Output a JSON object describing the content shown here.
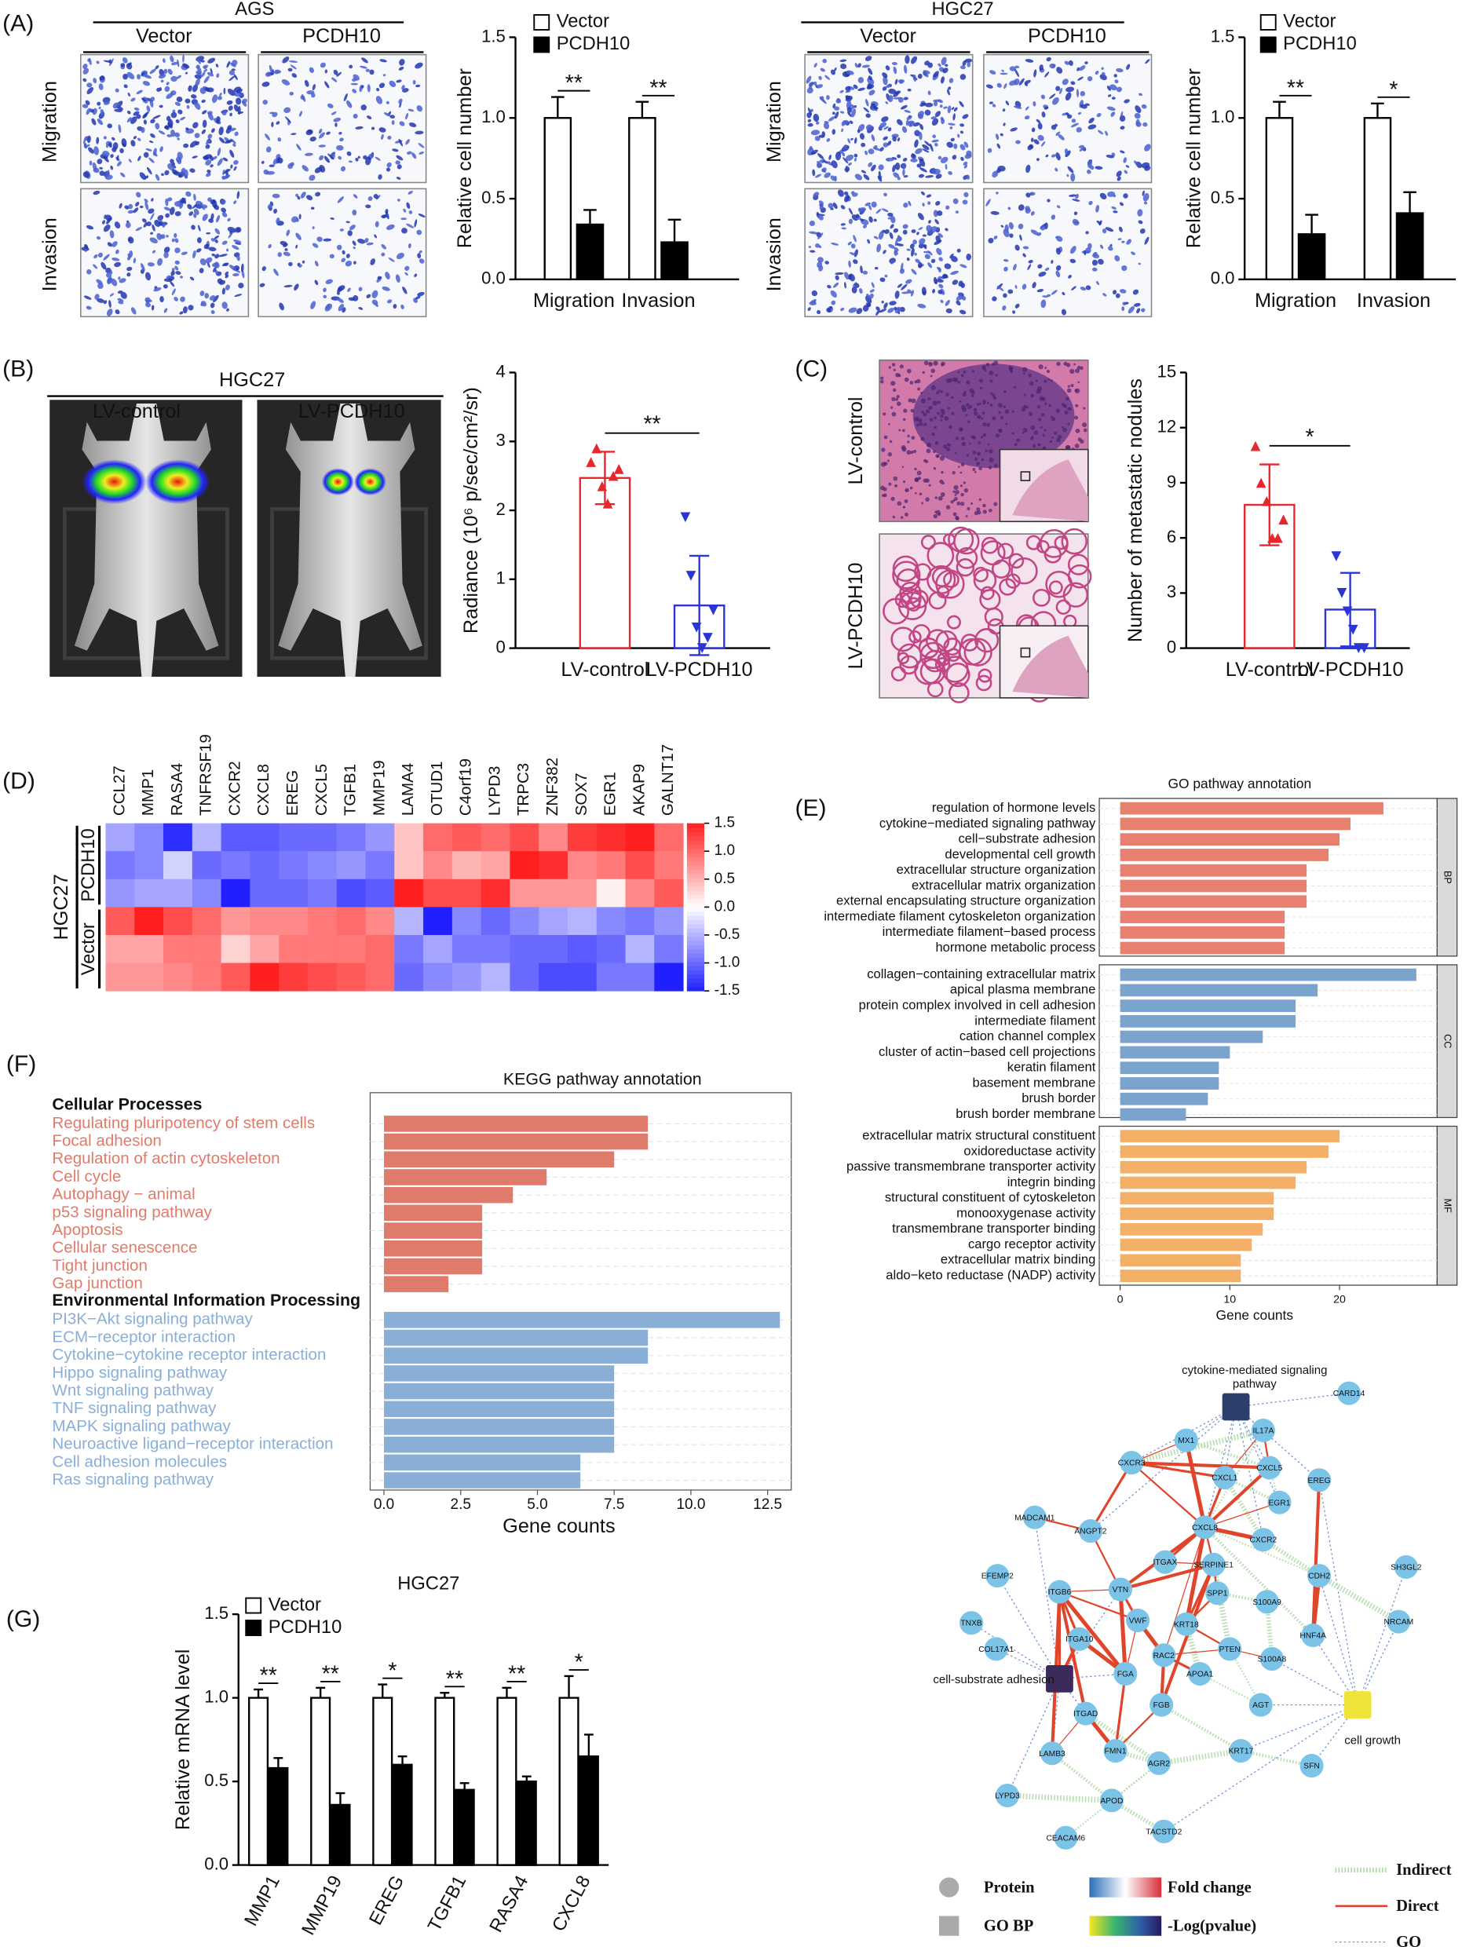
{
  "panel_labels": [
    "(A)",
    "(B)",
    "(C)",
    "(D)",
    "(E)",
    "(F)",
    "(G)"
  ],
  "panel_a": {
    "ags": {
      "title": "AGS",
      "columns": [
        "Vector",
        "PCDH10"
      ],
      "rows": [
        "Migration",
        "Invasion"
      ]
    },
    "hgc27": {
      "title": "HGC27",
      "columns": [
        "Vector",
        "PCDH10"
      ],
      "rows": [
        "Migration",
        "Invasion"
      ]
    }
  },
  "panel_b": {
    "title": "HGC27",
    "columns": [
      "LV-control",
      "LV-PCDH10"
    ]
  },
  "panel_c": {
    "rows": [
      "LV-control",
      "LV-PCDH10"
    ]
  },
  "chart_data": [
    {
      "type": "bar",
      "categories": [
        "Migration",
        "Invasion"
      ],
      "series": [
        {
          "name": "Vector",
          "color": "#ffffff",
          "values": [
            1.0,
            1.0
          ],
          "errors": [
            0.13,
            0.1
          ]
        },
        {
          "name": "PCDH10",
          "color": "#000000",
          "values": [
            0.34,
            0.23
          ],
          "errors": [
            0.09,
            0.14
          ]
        }
      ],
      "annotations": [
        "**",
        "**"
      ],
      "y_label": "Relative cell number",
      "ylim": [
        0,
        1.5
      ],
      "yticks": [
        {
          "value": 0,
          "label": "0.0"
        },
        0.5,
        {
          "value": 1,
          "label": "1.0"
        },
        1.5
      ]
    },
    {
      "type": "bar",
      "categories": [
        "Migration",
        "Invasion"
      ],
      "series": [
        {
          "name": "Vector",
          "color": "#ffffff",
          "values": [
            1.0,
            1.0
          ],
          "errors": [
            0.1,
            0.09
          ]
        },
        {
          "name": "PCDH10",
          "color": "#000000",
          "values": [
            0.28,
            0.41
          ],
          "errors": [
            0.12,
            0.13
          ]
        }
      ],
      "annotations": [
        "**",
        "*"
      ],
      "y_label": "Relative cell number",
      "ylim": [
        0,
        1.5
      ],
      "yticks": [
        {
          "value": 0,
          "label": "0.0"
        },
        0.5,
        {
          "value": 1,
          "label": "1.0"
        },
        1.5
      ]
    },
    {
      "type": "scatter_bar",
      "categories": [
        "LV-control",
        "LV-PCDH10"
      ],
      "values": [
        2.47,
        0.62
      ],
      "errors": [
        0.38,
        0.72
      ],
      "points": [
        [
          2.7,
          2.9,
          2.35,
          2.1,
          2.5,
          2.6
        ],
        [
          1.9,
          1.05,
          0.3,
          0,
          0.15,
          0.55
        ]
      ],
      "colors": [
        "#e8262d",
        "#2b35d6"
      ],
      "annotation": "**",
      "y_label": "Radiance (10⁶ p/sec/cm²/sr)",
      "ylim": [
        0,
        4
      ],
      "yticks": [
        0,
        1,
        2,
        3,
        4
      ]
    },
    {
      "type": "scatter_bar",
      "categories": [
        "LV-control",
        "LV-PCDH10"
      ],
      "values": [
        7.8,
        2.1
      ],
      "errors": [
        2.2,
        2.0
      ],
      "points": [
        [
          11,
          9,
          8,
          6,
          6,
          7
        ],
        [
          5,
          3,
          2,
          1,
          0,
          0
        ]
      ],
      "colors": [
        "#e8262d",
        "#2b35d6"
      ],
      "annotation": "*",
      "y_label": "Number of metastatic nodules",
      "ylim": [
        0,
        15
      ],
      "yticks": [
        0,
        3,
        6,
        9,
        12,
        15
      ]
    },
    {
      "type": "heatmap",
      "group_label": "HGC27",
      "groups": [
        "PCDH10",
        "Vector"
      ],
      "columns": [
        "CCL27",
        "MMP1",
        "RASA4",
        "TNFRSF19",
        "CXCR2",
        "CXCL8",
        "EREG",
        "CXCL5",
        "TGFB1",
        "MMP19",
        "LAMA4",
        "OTUD1",
        "C4orf19",
        "LYPD3",
        "TRPC3",
        "ZNF382",
        "SOX7",
        "EGR1",
        "AKAP9",
        "GALNT17"
      ],
      "values": [
        [
          -0.6,
          -0.8,
          -1.4,
          -0.5,
          -1.1,
          -1.1,
          -1.0,
          -1.0,
          -0.9,
          -0.7,
          0.4,
          1.0,
          1.1,
          1.0,
          1.2,
          0.8,
          1.3,
          1.4,
          1.5,
          1.0
        ],
        [
          -0.9,
          -0.8,
          -0.3,
          -1.0,
          -0.9,
          -1.0,
          -0.9,
          -0.8,
          -0.7,
          -0.9,
          0.4,
          0.8,
          0.5,
          0.6,
          1.5,
          1.4,
          0.8,
          0.9,
          1.2,
          0.9
        ],
        [
          -0.7,
          -0.6,
          -0.6,
          -0.8,
          -1.5,
          -1.0,
          -1.0,
          -0.9,
          -1.2,
          -1.1,
          1.5,
          1.2,
          1.2,
          1.4,
          0.7,
          0.7,
          0.7,
          0.1,
          0.8,
          1.1
        ],
        [
          1.1,
          1.5,
          1.2,
          1.0,
          0.7,
          0.8,
          0.8,
          0.9,
          1.0,
          0.8,
          -0.5,
          -1.5,
          -0.8,
          -1.0,
          -0.8,
          -0.6,
          -0.5,
          -0.8,
          -0.9,
          -0.7
        ],
        [
          0.6,
          0.6,
          0.9,
          0.9,
          0.3,
          0.6,
          0.9,
          0.9,
          0.9,
          1.0,
          -0.9,
          -0.6,
          -0.9,
          -0.9,
          -1.0,
          -1.0,
          -1.1,
          -1.0,
          -0.5,
          -0.9
        ],
        [
          0.7,
          0.7,
          0.8,
          0.9,
          1.1,
          1.5,
          1.3,
          1.2,
          1.1,
          1.0,
          -1.0,
          -0.8,
          -0.7,
          -0.5,
          -1.0,
          -1.2,
          -1.2,
          -0.9,
          -0.9,
          -1.5
        ]
      ],
      "zlim": [
        -1.5,
        1.5
      ],
      "colors": [
        "#1f1fff",
        "#ffffff",
        "#ff1f1f"
      ],
      "colorbar_ticks": [
        1.5,
        {
          "value": 1,
          "label": "1.0"
        },
        0.5,
        {
          "value": 0,
          "label": "0.0"
        },
        -0.5,
        {
          "value": -1,
          "label": "-1.0"
        },
        -1.5
      ]
    },
    {
      "type": "faceted_barh",
      "title": "GO pathway annotation",
      "x_label": "Gene counts",
      "xlim": [
        -1.9,
        28.9
      ],
      "xticks": [
        0,
        10,
        20
      ],
      "facets": [
        {
          "name": "BP",
          "color": "#e8806f",
          "categories": [
            "regulation of hormone levels",
            "cytokine−mediated signaling pathway",
            "cell−substrate adhesion",
            "developmental cell growth",
            "extracellular structure organization",
            "extracellular matrix organization",
            "external encapsulating structure organization",
            "intermediate filament cytoskeleton organization",
            "intermediate filament−based process",
            "hormone metabolic process"
          ],
          "values": [
            24,
            21,
            20,
            19,
            17,
            17,
            17,
            15,
            15,
            15
          ]
        },
        {
          "name": "CC",
          "color": "#7ba4cc",
          "categories": [
            "collagen−containing extracellular matrix",
            "apical plasma membrane",
            "protein complex involved in cell adhesion",
            "intermediate filament",
            "cation channel complex",
            "cluster of actin−based cell projections",
            "keratin filament",
            "basement membrane",
            "brush border",
            "brush border membrane"
          ],
          "values": [
            27,
            18,
            16,
            16,
            13,
            10,
            9,
            9,
            8,
            6
          ]
        },
        {
          "name": "MF",
          "color": "#f4b066",
          "categories": [
            "extracellular matrix structural constituent",
            "oxidoreductase activity",
            "passive transmembrane transporter activity",
            "integrin binding",
            "structural constituent of cytoskeleton",
            "monooxygenase activity",
            "transmembrane transporter binding",
            "cargo receptor activity",
            "extracellular matrix binding",
            "aldo−keto reductase (NADP) activity"
          ],
          "values": [
            20,
            19,
            17,
            16,
            14,
            14,
            13,
            12,
            11,
            11
          ]
        }
      ]
    },
    {
      "type": "grouped_barh",
      "title": "KEGG pathway annotation",
      "x_label": "Gene counts",
      "xlim": [
        -0.45,
        13.27
      ],
      "xticks": [
        {
          "value": 0,
          "label": "0.0"
        },
        2.5,
        {
          "value": 5,
          "label": "5.0"
        },
        7.5,
        {
          "value": 10,
          "label": "10.0"
        },
        12.5
      ],
      "groups": [
        {
          "name": "Cellular Processes",
          "color": "#e07b6b",
          "categories": [
            "Regulating pluripotency of stem cells",
            "Focal adhesion",
            "Regulation of actin cytoskeleton",
            "Cell cycle",
            "Autophagy − animal",
            "p53 signaling pathway",
            "Apoptosis",
            "Cellular senescence",
            "Tight junction",
            "Gap junction"
          ],
          "values": [
            8.6,
            8.6,
            7.5,
            5.3,
            4.2,
            3.2,
            3.2,
            3.2,
            3.2,
            2.1
          ]
        },
        {
          "name": "Environmental Information Processing",
          "color": "#8aafd6",
          "categories": [
            "PI3K−Akt signaling pathway",
            "ECM−receptor interaction",
            "Cytokine−cytokine receptor interaction",
            "Hippo signaling pathway",
            "Wnt signaling pathway",
            "TNF signaling pathway",
            "MAPK signaling pathway",
            "Neuroactive ligand−receptor interaction",
            "Cell adhesion molecules",
            "Ras signaling pathway"
          ],
          "values": [
            12.9,
            8.6,
            8.6,
            7.5,
            7.5,
            7.5,
            7.5,
            7.5,
            6.4,
            6.4
          ]
        }
      ]
    },
    {
      "type": "bar",
      "title": "HGC27",
      "categories": [
        "MMP1",
        "MMP19",
        "EREG",
        "TGFB1",
        "RASA4",
        "CXCL8"
      ],
      "series": [
        {
          "name": "Vector",
          "color": "#ffffff",
          "values": [
            1.0,
            1.0,
            1.0,
            1.0,
            1.0,
            1.0
          ],
          "errors": [
            0.05,
            0.06,
            0.08,
            0.03,
            0.06,
            0.13
          ]
        },
        {
          "name": "PCDH10",
          "color": "#000000",
          "values": [
            0.58,
            0.36,
            0.6,
            0.45,
            0.5,
            0.65
          ],
          "errors": [
            0.06,
            0.07,
            0.05,
            0.04,
            0.03,
            0.13
          ]
        }
      ],
      "annotations": [
        "**",
        "**",
        "*",
        "**",
        "**",
        "*"
      ],
      "y_label": "Relative mRNA level",
      "ylim": [
        0,
        1.5
      ],
      "yticks": [
        {
          "value": 0,
          "label": "0.0"
        },
        0.5,
        {
          "value": 1,
          "label": "1.0"
        },
        1.5
      ]
    }
  ],
  "network": {
    "go_terms": [
      [
        "cytokine-mediated signaling",
        "pathway"
      ],
      [
        "cell-substrate adhesion"
      ],
      [
        "cell growth"
      ]
    ],
    "proteins": [
      "CARD14",
      "IL17A",
      "MX1",
      "CXCR3",
      "CXCL5",
      "CXCL1",
      "EREG",
      "EGR1",
      "MADCAM1",
      "ANGPT2",
      "CXCL8",
      "CXCR2",
      "EFEMP2",
      "CDH2",
      "SH3GL2",
      "ITGAX",
      "SERPINE1",
      "ITGB6",
      "VTN",
      "SPP1",
      "S100A9",
      "TNXB",
      "VWF",
      "KRT18",
      "HNF4A",
      "NRCAM",
      "COL17A1",
      "ITGA10",
      "RAC2",
      "PTEN",
      "S100A8",
      "APOA1",
      "FGA",
      "FGB",
      "AGT",
      "ITGAD",
      "LAMB3",
      "FMN1",
      "AGR2",
      "KRT17",
      "SFN",
      "APOD",
      "LYPD3",
      "TACSTD2",
      "CEACAM6"
    ],
    "legend": {
      "protein": "Protein",
      "go_bp": "GO BP",
      "fold_change": "Fold change",
      "pvalue": "-Log(pvalue)",
      "indirect": "Indirect",
      "direct": "Direct",
      "go": "GO"
    }
  }
}
